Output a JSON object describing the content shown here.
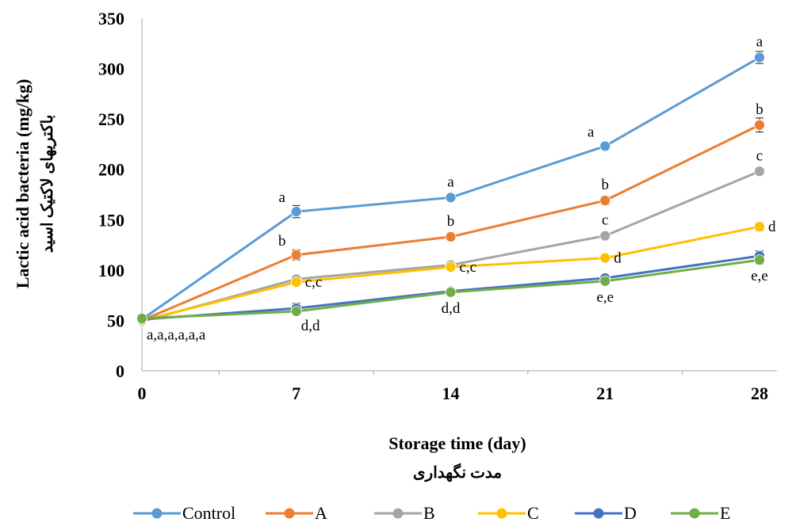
{
  "chart_data": {
    "type": "line",
    "title": "",
    "xlabel": "Storage time (day)",
    "xlabel_secondary": "مدت نگهداری",
    "ylabel": "Lactic acid bacteria (mg/kg)",
    "ylabel_secondary": "باکتریهای لاکتیک اسید",
    "x": [
      0,
      7,
      14,
      21,
      28
    ],
    "x_tick_labels": [
      "0",
      "7",
      "14",
      "21",
      "28"
    ],
    "ylim": [
      0,
      350
    ],
    "y_ticks": [
      0,
      50,
      100,
      150,
      200,
      250,
      300,
      350
    ],
    "grid": false,
    "legend_position": "bottom",
    "series": [
      {
        "name": "Control",
        "color": "#5B9BD5",
        "values": [
          51,
          158,
          172,
          223,
          311
        ],
        "errors": [
          3,
          6,
          3,
          3,
          6
        ]
      },
      {
        "name": "A",
        "color": "#ED7D31",
        "values": [
          50,
          115,
          133,
          169,
          244
        ],
        "errors": [
          3,
          5,
          3,
          4,
          7
        ]
      },
      {
        "name": "B",
        "color": "#A5A5A5",
        "values": [
          49,
          91,
          105,
          134,
          198
        ],
        "errors": [
          3,
          3,
          3,
          3,
          3
        ]
      },
      {
        "name": "C",
        "color": "#FFC000",
        "values": [
          50,
          88,
          103,
          112,
          143
        ],
        "errors": [
          3,
          3,
          3,
          3,
          4
        ]
      },
      {
        "name": "D",
        "color": "#4472C4",
        "values": [
          51,
          62,
          79,
          92,
          114
        ],
        "errors": [
          3,
          5,
          3,
          3,
          5
        ]
      },
      {
        "name": "E",
        "color": "#70AD47",
        "values": [
          52,
          59,
          78,
          89,
          110
        ],
        "errors": [
          3,
          3,
          3,
          3,
          4
        ]
      }
    ],
    "annotations": [
      {
        "text": "a",
        "x": 7,
        "y": 158,
        "anchor": "above-left"
      },
      {
        "text": "a",
        "x": 14,
        "y": 172,
        "anchor": "above"
      },
      {
        "text": "a",
        "x": 21,
        "y": 223,
        "anchor": "above-left"
      },
      {
        "text": "a",
        "x": 28,
        "y": 311,
        "anchor": "above"
      },
      {
        "text": "b",
        "x": 7,
        "y": 115,
        "anchor": "above-left"
      },
      {
        "text": "b",
        "x": 14,
        "y": 133,
        "anchor": "above"
      },
      {
        "text": "b",
        "x": 21,
        "y": 169,
        "anchor": "above"
      },
      {
        "text": "b",
        "x": 28,
        "y": 244,
        "anchor": "above"
      },
      {
        "text": "c",
        "x": 21,
        "y": 134,
        "anchor": "above"
      },
      {
        "text": "c",
        "x": 28,
        "y": 198,
        "anchor": "above"
      },
      {
        "text": "d",
        "x": 21,
        "y": 112,
        "anchor": "right"
      },
      {
        "text": "d",
        "x": 28,
        "y": 143,
        "anchor": "right"
      },
      {
        "text": "c,c",
        "x": 7,
        "y": 88,
        "anchor": "right"
      },
      {
        "text": "c,c",
        "x": 14,
        "y": 103,
        "anchor": "right"
      },
      {
        "text": "d,d",
        "x": 7,
        "y": 59,
        "anchor": "below-right"
      },
      {
        "text": "d,d",
        "x": 14,
        "y": 78,
        "anchor": "below"
      },
      {
        "text": "e,e",
        "x": 21,
        "y": 89,
        "anchor": "below"
      },
      {
        "text": "e,e",
        "x": 28,
        "y": 110,
        "anchor": "below"
      },
      {
        "text": "a,a,a,a,a,a",
        "x": 0,
        "y": 50,
        "anchor": "below-right"
      }
    ]
  }
}
